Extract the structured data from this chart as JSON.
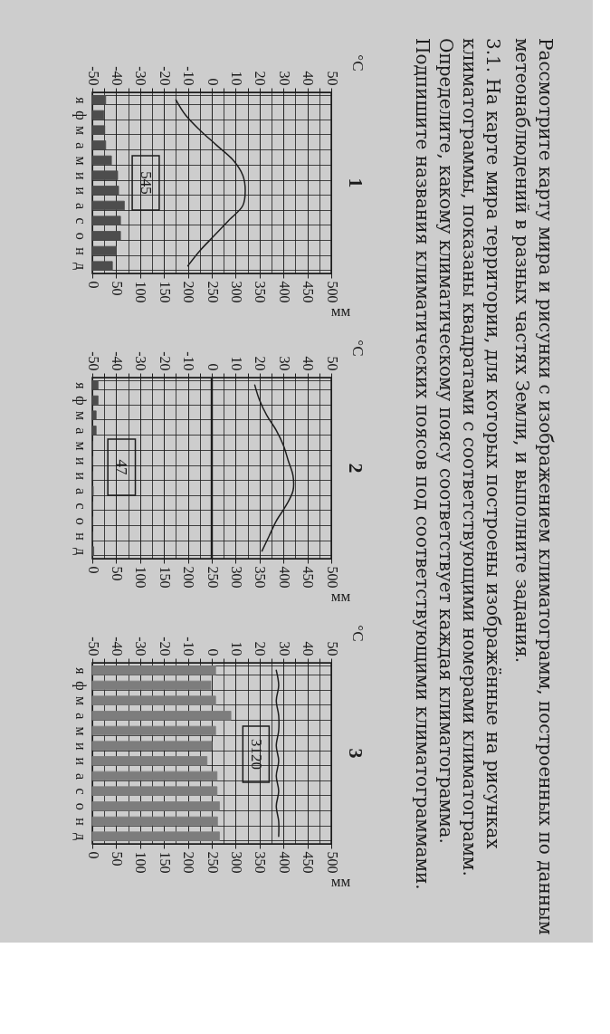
{
  "chart_data": [
    {
      "type": "bar",
      "title": "1",
      "orientation": "horizontal",
      "categories": [
        "я",
        "ф",
        "м",
        "а",
        "м",
        "и",
        "и",
        "а",
        "с",
        "о",
        "н",
        "д"
      ],
      "series": [
        {
          "type": "bar",
          "color": "#4d4d4d",
          "values": [
            28,
            24,
            26,
            28,
            40,
            53,
            55,
            67,
            59,
            59,
            50,
            42
          ]
        },
        {
          "type": "line",
          "axis": "x2",
          "color": "#1e1e1e",
          "values": [
            -15,
            -11,
            -5,
            2,
            9,
            13,
            14,
            13,
            7,
            1,
            -5,
            -10
          ]
        }
      ],
      "xlim": [
        0,
        500
      ],
      "xticks": [
        0,
        50,
        100,
        150,
        200,
        250,
        300,
        350,
        400,
        450,
        500
      ],
      "x2lim": [
        -50,
        50
      ],
      "x2ticks": [
        -50,
        {
          "value": -45,
          "label": null
        },
        -40,
        {
          "value": -35,
          "label": null
        },
        -30,
        {
          "value": -25,
          "label": null
        },
        -20,
        {
          "value": -15,
          "label": null
        },
        -10,
        {
          "value": -5,
          "label": null
        },
        0,
        {
          "value": 5,
          "label": null
        },
        10,
        {
          "value": 15,
          "label": null
        },
        20,
        {
          "value": 25,
          "label": null
        },
        30,
        {
          "value": 35,
          "label": null
        },
        40,
        {
          "value": 45,
          "label": null
        },
        50
      ],
      "xlabel": "мм",
      "x2label": "°C",
      "grid": true,
      "annotations": [
        "545"
      ]
    },
    {
      "type": "bar",
      "title": "2",
      "orientation": "horizontal",
      "categories": [
        "я",
        "ф",
        "м",
        "а",
        "м",
        "и",
        "и",
        "а",
        "с",
        "о",
        "н",
        "д"
      ],
      "series": [
        {
          "type": "bar",
          "color": "#4d4d4d",
          "values": [
            12,
            12,
            8,
            8,
            0,
            0,
            0,
            2,
            0,
            0,
            0,
            3
          ]
        },
        {
          "type": "line",
          "axis": "x2",
          "color": "#1e1e1e",
          "values": [
            18,
            20,
            23,
            27,
            30,
            32,
            34,
            34,
            31,
            27,
            24,
            21
          ]
        }
      ],
      "xlim": [
        0,
        500
      ],
      "xticks": [
        0,
        50,
        100,
        150,
        200,
        250,
        300,
        350,
        400,
        450,
        500
      ],
      "x2lim": [
        -50,
        50
      ],
      "x2ticks": [
        -50,
        {
          "value": -45,
          "label": null
        },
        -40,
        {
          "value": -35,
          "label": null
        },
        -30,
        {
          "value": -25,
          "label": null
        },
        -20,
        {
          "value": -15,
          "label": null
        },
        -10,
        {
          "value": -5,
          "label": null
        },
        0,
        {
          "value": 5,
          "label": null
        },
        10,
        {
          "value": 15,
          "label": null
        },
        20,
        {
          "value": 25,
          "label": null
        },
        30,
        {
          "value": 35,
          "label": null
        },
        40,
        {
          "value": 45,
          "label": null
        },
        50
      ],
      "xlabel": "мм",
      "x2label": "°C",
      "grid": true,
      "ref_lines": [
        {
          "axis": "x2",
          "value": 0
        }
      ],
      "annotations": [
        "47"
      ]
    },
    {
      "type": "bar",
      "title": "3",
      "orientation": "horizontal",
      "categories": [
        "я",
        "ф",
        "м",
        "а",
        "м",
        "и",
        "и",
        "а",
        "с",
        "о",
        "н",
        "д"
      ],
      "series": [
        {
          "type": "bar",
          "color": "#7d7d7d",
          "values": [
            258,
            248,
            258,
            290,
            258,
            250,
            240,
            261,
            261,
            266,
            262,
            266
          ]
        },
        {
          "type": "line",
          "axis": "x2",
          "color": "#1e1e1e",
          "values": [
            27,
            28,
            27,
            28,
            28,
            27,
            28,
            27,
            28,
            27,
            28,
            28
          ]
        }
      ],
      "xlim": [
        0,
        500
      ],
      "xticks": [
        0,
        50,
        100,
        150,
        200,
        250,
        300,
        350,
        400,
        450,
        500
      ],
      "x2lim": [
        -50,
        50
      ],
      "x2ticks": [
        -50,
        {
          "value": -45,
          "label": null
        },
        -40,
        {
          "value": -35,
          "label": null
        },
        -30,
        {
          "value": -25,
          "label": null
        },
        -20,
        {
          "value": -15,
          "label": null
        },
        -10,
        {
          "value": -5,
          "label": null
        },
        0,
        {
          "value": 5,
          "label": null
        },
        10,
        {
          "value": 15,
          "label": null
        },
        20,
        {
          "value": 25,
          "label": null
        },
        30,
        {
          "value": 35,
          "label": null
        },
        40,
        {
          "value": 45,
          "label": null
        },
        50
      ],
      "xlabel": "мм",
      "x2label": "°C",
      "grid": true,
      "annotations": [
        "3120"
      ]
    },
    {
      "type": "other",
      "title": "Рассмотрите карту мира и рисунки с изображением климатограмм, построенных по данным\nметеонаблюдений в разных частях Земли, и выполните задания.",
      "subtitle": "3.1. На карте мира территории, для которых построены изображённые на рисунках\nклиматограммы, показаны квадратами с соответствующими номерами климатограмм.\nОпределите, какому климатическому поясу соответствует каждая климатограмма.\nПодпишите названия климатических поясов под соответствующими климатограммами."
    }
  ]
}
